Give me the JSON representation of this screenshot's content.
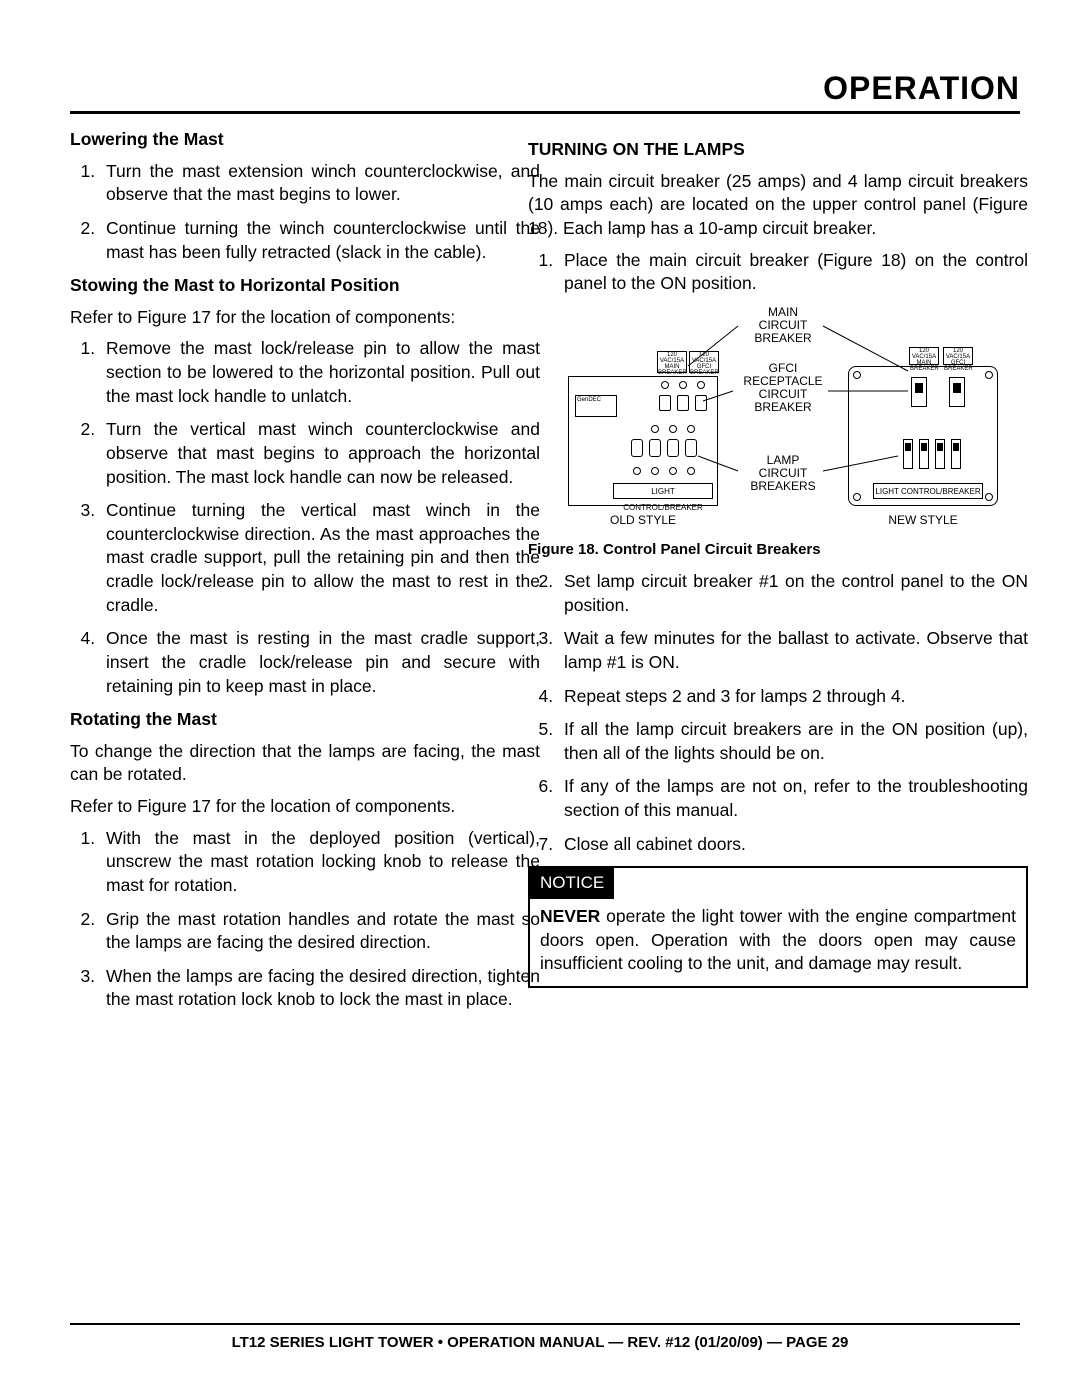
{
  "page_title": "OPERATION",
  "left": {
    "h_lowering": "Lowering the Mast",
    "lowering_steps": [
      "Turn the mast extension winch counterclockwise, and observe that the mast begins to lower.",
      "Continue turning the winch counterclockwise until the mast has been fully retracted (slack in the cable)."
    ],
    "h_stowing": "Stowing the Mast to Horizontal Position",
    "stowing_intro": "Refer to Figure 17 for the location of components:",
    "stowing_steps": [
      "Remove the mast lock/release pin to allow the mast section to be lowered to the horizontal position. Pull out the mast lock handle to unlatch.",
      "Turn the vertical mast winch counterclockwise and observe that mast begins to approach the horizontal position. The mast lock handle can now be released.",
      "Continue turning the vertical mast winch in the counterclockwise direction. As the mast approaches the mast cradle support, pull the retaining pin and then the cradle lock/release pin to allow the mast to rest in the cradle.",
      "Once the mast is resting in the mast cradle support, insert the cradle lock/release pin and secure with retaining pin to keep mast in place."
    ],
    "h_rotating": "Rotating the Mast",
    "rotating_intro1": "To change the direction that the lamps are facing, the mast can be rotated.",
    "rotating_intro2": "Refer to Figure 17 for the location of components.",
    "rotating_steps": [
      "With the mast in the deployed position (vertical), unscrew the mast rotation locking knob to release the mast for rotation.",
      "Grip the mast rotation handles and rotate the mast so the lamps are facing the desired direction.",
      "When the lamps are facing the desired direction, tighten the mast rotation lock knob to lock the mast in place."
    ]
  },
  "right": {
    "h_turning": "TURNING ON THE LAMPS",
    "turning_intro": "The main circuit breaker (25 amps) and 4 lamp circuit breakers (10 amps each) are located on the upper control panel (Figure 18). Each lamp has a 10-amp circuit breaker.",
    "step1": "Place the main circuit breaker (Figure 18) on the control panel to the ON position.",
    "figure_labels": {
      "main": "MAIN\nCIRCUIT\nBREAKER",
      "gfci": "GFCI\nRECEPTACLE\nCIRCUIT\nBREAKER",
      "lamp": "LAMP\nCIRCUIT\nBREAKERS",
      "light_control": "LIGHT CONTROL/BREAKER",
      "old_style": "OLD STYLE",
      "new_style": "NEW STYLE",
      "top_tiny_left": "120 VAC/15A\nMAIN\nBREAKER",
      "top_tiny_right": "120 VAC/15A\nGFCI\nBREAKER"
    },
    "figure_caption": "Figure 18. Control Panel Circuit Breakers",
    "steps_rest": [
      "Set lamp circuit breaker #1 on the control panel to the ON position.",
      "Wait a few minutes for the ballast to activate. Observe that lamp #1 is ON.",
      "Repeat steps 2 and 3 for lamps 2 through 4.",
      "If all the lamp circuit breakers are in the ON position (up), then all of the lights should be on.",
      "If any of the lamps are not on, refer to the troubleshooting section of this manual.",
      "Close all cabinet doors."
    ],
    "notice_head": "NOTICE",
    "notice_never": "NEVER",
    "notice_body": " operate the light tower with the engine compartment doors open. Operation with the doors open may cause insufﬁcient cooling to the unit, and damage may result."
  },
  "footer": "LT12 SERIES LIGHT TOWER • OPERATION MANUAL — REV. #12 (01/20/09) — PAGE 29"
}
